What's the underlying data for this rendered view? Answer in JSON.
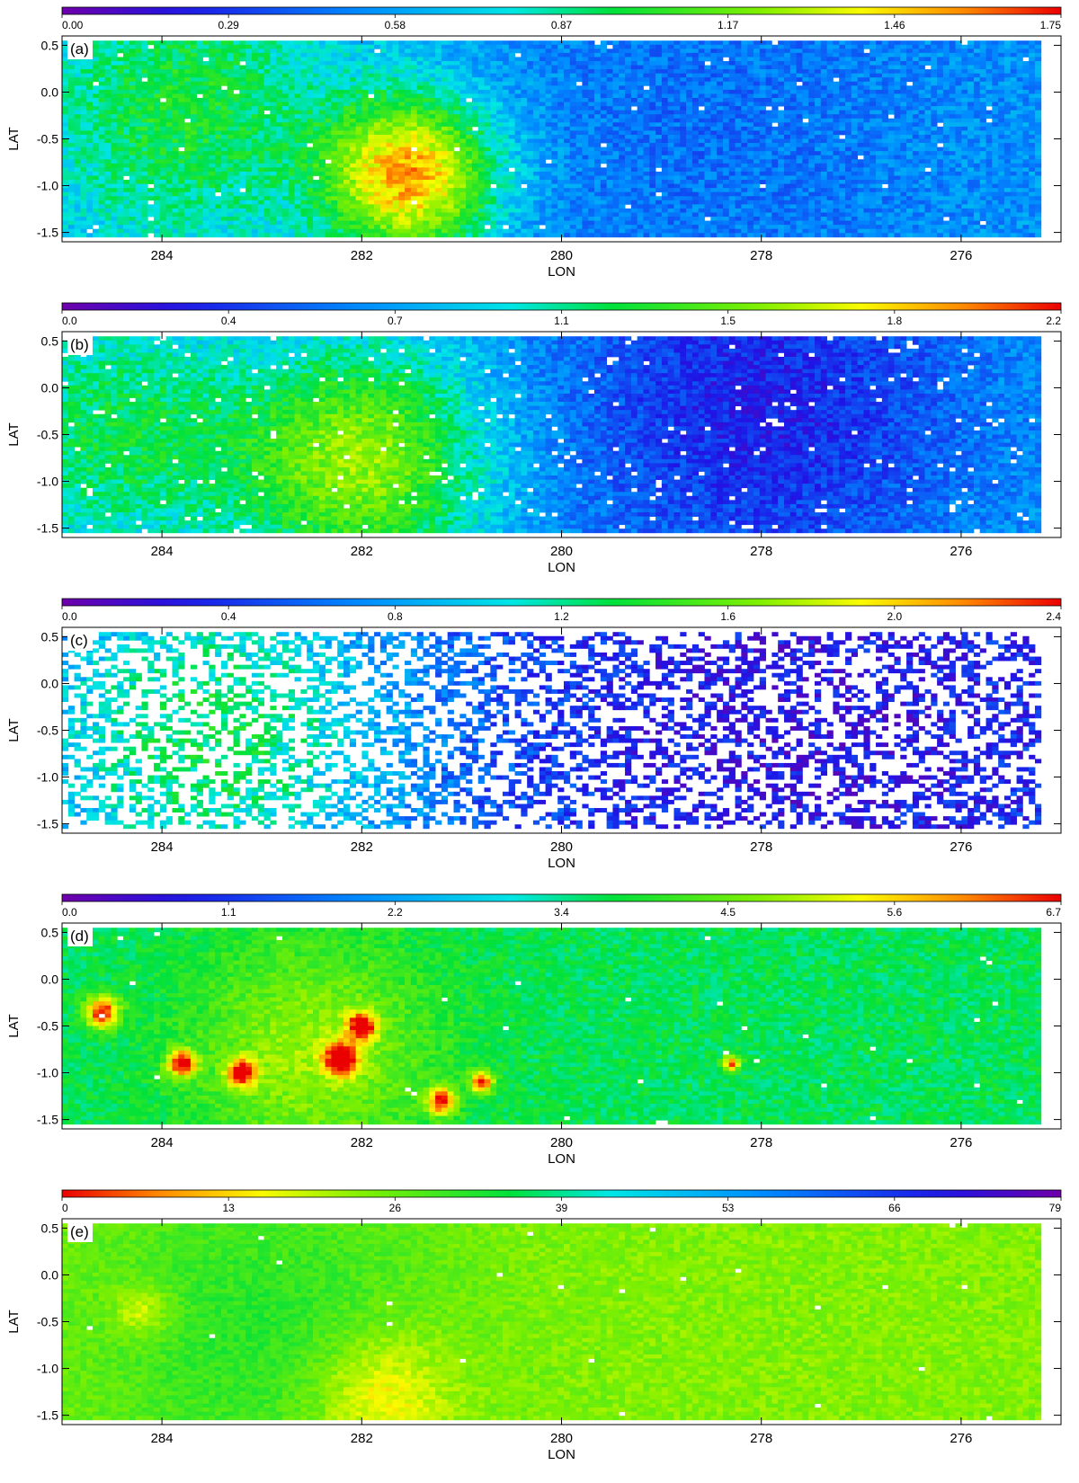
{
  "chart_data": [
    {
      "type": "heatmap",
      "panel_label": "(a)",
      "colormap": "rainbow",
      "colorbar_ticks": [
        "0.00",
        "0.29",
        "0.58",
        "0.87",
        "1.17",
        "1.46",
        "1.75"
      ],
      "value_range": [
        0.0,
        1.75
      ],
      "x_ticks": [
        "284",
        "282",
        "280",
        "278",
        "276"
      ],
      "y_ticks": [
        "0.5",
        "0.0",
        "-0.5",
        "-1.0",
        "-1.5"
      ],
      "xlabel": "LON",
      "ylabel": "LAT",
      "xlim": [
        285.0,
        275.0
      ],
      "ylim": [
        -1.6,
        0.6
      ],
      "data_extent": {
        "lon": [
          285.0,
          275.2
        ],
        "lat": [
          -1.55,
          0.55
        ]
      },
      "pattern": {
        "features": [
          {
            "lon": 281.5,
            "lat": -0.9,
            "value": 1.5,
            "sigma": 0.6
          },
          {
            "lon": 283.8,
            "lat": -0.2,
            "value": 1.0,
            "sigma": 1.2
          },
          {
            "lon": 278.5,
            "lat": -0.3,
            "value": 0.45,
            "sigma": 1.5
          }
        ],
        "background": 0.55,
        "noise": 0.12,
        "missing_fraction": 0.01
      }
    },
    {
      "type": "heatmap",
      "panel_label": "(b)",
      "colormap": "rainbow",
      "colorbar_ticks": [
        "0.0",
        "0.4",
        "0.7",
        "1.1",
        "1.5",
        "1.8",
        "2.2"
      ],
      "value_range": [
        0.0,
        2.2
      ],
      "x_ticks": [
        "284",
        "282",
        "280",
        "278",
        "276"
      ],
      "y_ticks": [
        "0.5",
        "0.0",
        "-0.5",
        "-1.0",
        "-1.5"
      ],
      "xlabel": "LON",
      "ylabel": "LAT",
      "xlim": [
        285.0,
        275.0
      ],
      "ylim": [
        -1.6,
        0.6
      ],
      "data_extent": {
        "lon": [
          285.0,
          275.2
        ],
        "lat": [
          -1.55,
          0.55
        ]
      },
      "pattern": {
        "features": [
          {
            "lon": 282.0,
            "lat": -0.8,
            "value": 1.55,
            "sigma": 0.9
          },
          {
            "lon": 284.5,
            "lat": -0.5,
            "value": 1.2,
            "sigma": 1.0
          },
          {
            "lon": 278.0,
            "lat": -0.2,
            "value": 0.3,
            "sigma": 1.4
          }
        ],
        "background": 0.7,
        "noise": 0.15,
        "missing_fraction": 0.03
      }
    },
    {
      "type": "heatmap",
      "panel_label": "(c)",
      "colormap": "rainbow",
      "colorbar_ticks": [
        "0.0",
        "0.4",
        "0.8",
        "1.2",
        "1.6",
        "2.0",
        "2.4"
      ],
      "value_range": [
        0.0,
        2.4
      ],
      "x_ticks": [
        "284",
        "282",
        "280",
        "278",
        "276"
      ],
      "y_ticks": [
        "0.5",
        "0.0",
        "-0.5",
        "-1.0",
        "-1.5"
      ],
      "xlabel": "LON",
      "ylabel": "LAT",
      "xlim": [
        285.0,
        275.0
      ],
      "ylim": [
        -1.6,
        0.6
      ],
      "data_extent": {
        "lon": [
          285.0,
          275.2
        ],
        "lat": [
          -1.55,
          0.55
        ]
      },
      "pattern": {
        "features": [
          {
            "lon": 283.5,
            "lat": -0.6,
            "value": 1.3,
            "sigma": 1.4
          },
          {
            "lon": 277.5,
            "lat": -0.5,
            "value": 0.25,
            "sigma": 2.0
          }
        ],
        "background": 0.5,
        "noise": 0.2,
        "missing_fraction": 0.55
      }
    },
    {
      "type": "heatmap",
      "panel_label": "(d)",
      "colormap": "rainbow",
      "colorbar_ticks": [
        "0.0",
        "1.1",
        "2.2",
        "3.4",
        "4.5",
        "5.6",
        "6.7"
      ],
      "value_range": [
        0.0,
        6.7
      ],
      "x_ticks": [
        "284",
        "282",
        "280",
        "278",
        "276"
      ],
      "y_ticks": [
        "0.5",
        "0.0",
        "-0.5",
        "-1.0",
        "-1.5"
      ],
      "xlabel": "LON",
      "ylabel": "LAT",
      "xlim": [
        285.0,
        275.0
      ],
      "ylim": [
        -1.6,
        0.6
      ],
      "data_extent": {
        "lon": [
          285.0,
          275.2
        ],
        "lat": [
          -1.55,
          0.55
        ]
      },
      "pattern": {
        "features": [
          {
            "lon": 284.6,
            "lat": -0.35,
            "value": 6.7,
            "sigma": 0.12
          },
          {
            "lon": 283.8,
            "lat": -0.9,
            "value": 6.7,
            "sigma": 0.1
          },
          {
            "lon": 282.2,
            "lat": -0.85,
            "value": 6.7,
            "sigma": 0.12
          },
          {
            "lon": 282.0,
            "lat": -0.5,
            "value": 6.7,
            "sigma": 0.1
          },
          {
            "lon": 283.2,
            "lat": -1.0,
            "value": 6.6,
            "sigma": 0.1
          },
          {
            "lon": 281.2,
            "lat": -1.3,
            "value": 6.6,
            "sigma": 0.1
          },
          {
            "lon": 280.8,
            "lat": -1.1,
            "value": 6.5,
            "sigma": 0.08
          },
          {
            "lon": 278.3,
            "lat": -0.9,
            "value": 6.4,
            "sigma": 0.06
          },
          {
            "lon": 282.5,
            "lat": -0.8,
            "value": 4.8,
            "sigma": 0.9
          }
        ],
        "background": 3.6,
        "noise": 0.35,
        "missing_fraction": 0.005
      }
    },
    {
      "type": "heatmap",
      "panel_label": "(e)",
      "colormap": "rainbow_reversed",
      "colorbar_ticks": [
        "0",
        "13",
        "26",
        "39",
        "53",
        "66",
        "79"
      ],
      "value_range": [
        0,
        79
      ],
      "x_ticks": [
        "284",
        "282",
        "280",
        "278",
        "276"
      ],
      "y_ticks": [
        "0.5",
        "0.0",
        "-0.5",
        "-1.0",
        "-1.5"
      ],
      "xlabel": "LON",
      "ylabel": "LAT",
      "xlim": [
        285.0,
        275.0
      ],
      "ylim": [
        -1.6,
        0.6
      ],
      "data_extent": {
        "lon": [
          285.0,
          275.2
        ],
        "lat": [
          -1.55,
          0.55
        ]
      },
      "pattern": {
        "features": [
          {
            "lon": 281.8,
            "lat": -1.3,
            "value": 12,
            "sigma": 0.5
          },
          {
            "lon": 284.2,
            "lat": -0.4,
            "value": 14,
            "sigma": 0.2
          },
          {
            "lon": 283.0,
            "lat": -0.6,
            "value": 32,
            "sigma": 1.3
          }
        ],
        "background": 24,
        "noise": 3,
        "missing_fraction": 0.003
      }
    }
  ]
}
